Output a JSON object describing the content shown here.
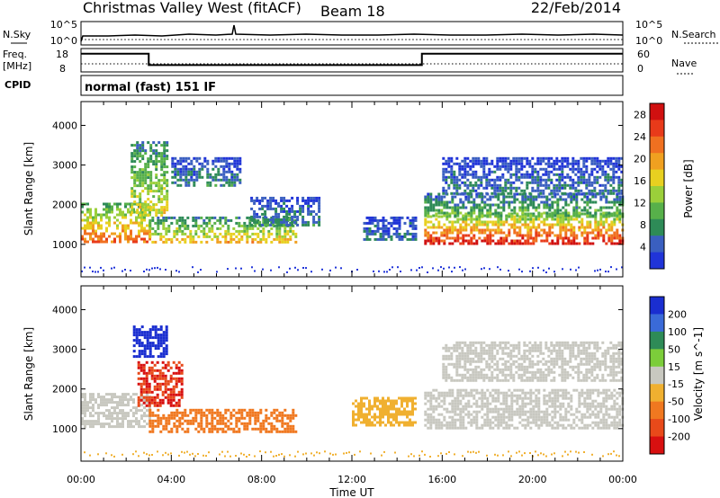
{
  "header": {
    "station": "Christmas Valley West (fitACF)",
    "beam": "Beam 18",
    "date": "22/Feb/2014"
  },
  "noise_panel": {
    "left_label": "N.Sky",
    "right_label": "N.Search",
    "left_ticks": [
      "10^5",
      "10^0"
    ],
    "right_ticks": [
      "10^5",
      "10^0"
    ]
  },
  "freq_panel": {
    "left_label_1": "Freq.",
    "left_label_2": "[MHz]",
    "left_ticks": [
      "18",
      "8"
    ],
    "right_label": "Nave",
    "right_ticks": [
      "60",
      "0"
    ],
    "freq_steps": [
      {
        "start_h": 0.0,
        "end_h": 3.0,
        "mhz": 16.6
      },
      {
        "start_h": 3.0,
        "end_h": 15.1,
        "mhz": 10.3
      },
      {
        "start_h": 15.1,
        "end_h": 24.0,
        "mhz": 16.6
      }
    ]
  },
  "cpid": {
    "label": "CPID",
    "program": "normal (fast) 151 IF"
  },
  "chart_data": [
    {
      "type": "heatmap",
      "name": "Power",
      "ylabel": "Slant Range [km]",
      "xlabel": "",
      "x_ticks": [
        "00:00",
        "04:00",
        "08:00",
        "12:00",
        "16:00",
        "20:00",
        "00:00"
      ],
      "y_ticks": [
        "1000",
        "2000",
        "3000",
        "4000"
      ],
      "xlim_hours": [
        0,
        24
      ],
      "ylim_km": [
        180,
        4600
      ],
      "colorbar": {
        "label": "Power [dB]",
        "ticks": [
          "4",
          "8",
          "12",
          "16",
          "20",
          "24",
          "28"
        ],
        "range": [
          0,
          30
        ],
        "colors": [
          "#2034d8",
          "#3a5fc0",
          "#2e8b57",
          "#57b04a",
          "#9bcf3a",
          "#e8d020",
          "#f0a020",
          "#f07020",
          "#e83a1a",
          "#d01010"
        ]
      },
      "echo_regions": [
        {
          "t0": 0.0,
          "t1": 3.0,
          "r0": 1050,
          "r1": 2050,
          "power_db": 20
        },
        {
          "t0": 2.2,
          "t1": 3.8,
          "r0": 1700,
          "r1": 3600,
          "power_db": 14
        },
        {
          "t0": 3.0,
          "t1": 9.5,
          "r0": 1050,
          "r1": 1700,
          "power_db": 16
        },
        {
          "t0": 4.0,
          "t1": 7.0,
          "r0": 2500,
          "r1": 3200,
          "power_db": 6
        },
        {
          "t0": 7.5,
          "t1": 10.5,
          "r0": 1500,
          "r1": 2200,
          "power_db": 6
        },
        {
          "t0": 12.5,
          "t1": 14.8,
          "r0": 1100,
          "r1": 1700,
          "power_db": 5
        },
        {
          "t0": 15.2,
          "t1": 24.0,
          "r0": 1000,
          "r1": 1800,
          "power_db": 24
        },
        {
          "t0": 15.2,
          "t1": 24.0,
          "r0": 1700,
          "r1": 2300,
          "power_db": 10
        },
        {
          "t0": 16.0,
          "t1": 24.0,
          "r0": 2300,
          "r1": 3200,
          "power_db": 5
        }
      ]
    },
    {
      "type": "heatmap",
      "name": "Velocity",
      "ylabel": "Slant Range [km]",
      "xlabel": "Time UT",
      "x_ticks": [
        "00:00",
        "04:00",
        "08:00",
        "12:00",
        "16:00",
        "20:00",
        "00:00"
      ],
      "y_ticks": [
        "1000",
        "2000",
        "3000",
        "4000"
      ],
      "xlim_hours": [
        0,
        24
      ],
      "ylim_km": [
        180,
        4600
      ],
      "colorbar": {
        "label": "Velocity [m s^-1]",
        "ticks": [
          "200",
          "100",
          "50",
          "15",
          "-15",
          "-50",
          "-100",
          "-200"
        ],
        "colors": [
          "#1a2ed0",
          "#3a6ad8",
          "#2e8b57",
          "#7ccd3a",
          "#c8c8c0",
          "#f0b030",
          "#f07820",
          "#e84a1a",
          "#d81010"
        ]
      },
      "echo_regions": [
        {
          "t0": 0.0,
          "t1": 3.0,
          "r0": 1050,
          "r1": 1900,
          "velocity": 0
        },
        {
          "t0": 2.3,
          "t1": 3.8,
          "r0": 2800,
          "r1": 3600,
          "velocity": 220
        },
        {
          "t0": 2.5,
          "t1": 4.5,
          "r0": 1600,
          "r1": 2700,
          "velocity": -200
        },
        {
          "t0": 3.0,
          "t1": 9.5,
          "r0": 900,
          "r1": 1500,
          "velocity": -70
        },
        {
          "t0": 12.0,
          "t1": 14.8,
          "r0": 1100,
          "r1": 1800,
          "velocity": -40
        },
        {
          "t0": 15.2,
          "t1": 24.0,
          "r0": 1000,
          "r1": 2000,
          "velocity": 0
        },
        {
          "t0": 16.0,
          "t1": 24.0,
          "r0": 2200,
          "r1": 3200,
          "velocity": 0
        }
      ]
    }
  ]
}
